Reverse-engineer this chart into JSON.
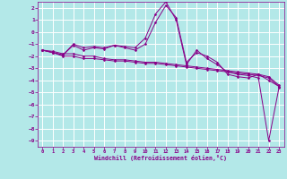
{
  "xlabel": "Windchill (Refroidissement éolien,°C)",
  "bg_color": "#b3e8e8",
  "grid_color": "#c0e8e8",
  "line_color": "#880088",
  "xlim": [
    -0.5,
    23.5
  ],
  "ylim": [
    -9.5,
    2.5
  ],
  "x_ticks": [
    0,
    1,
    2,
    3,
    4,
    5,
    6,
    7,
    8,
    9,
    10,
    11,
    12,
    13,
    14,
    15,
    16,
    17,
    18,
    19,
    20,
    21,
    22,
    23
  ],
  "y_ticks": [
    2,
    1,
    0,
    -1,
    -2,
    -3,
    -4,
    -5,
    -6,
    -7,
    -8,
    -9
  ],
  "series": [
    [
      -1.5,
      -1.7,
      -1.9,
      -1.1,
      -1.5,
      -1.3,
      -1.4,
      -1.1,
      -1.3,
      -1.5,
      -1.0,
      0.8,
      2.2,
      1.2,
      -2.5,
      -1.7,
      -2.0,
      -2.5,
      -3.5,
      -3.7,
      -3.8,
      -3.5,
      -4.0,
      -4.5
    ],
    [
      -1.5,
      -1.7,
      -2.0,
      -2.0,
      -2.2,
      -2.2,
      -2.3,
      -2.4,
      -2.4,
      -2.5,
      -2.6,
      -2.6,
      -2.7,
      -2.8,
      -2.9,
      -3.0,
      -3.1,
      -3.2,
      -3.3,
      -3.4,
      -3.5,
      -3.6,
      -3.8,
      -4.5
    ],
    [
      -1.5,
      -1.6,
      -1.8,
      -1.8,
      -2.0,
      -2.0,
      -2.2,
      -2.3,
      -2.3,
      -2.4,
      -2.5,
      -2.5,
      -2.6,
      -2.7,
      -2.8,
      -2.9,
      -3.0,
      -3.1,
      -3.2,
      -3.3,
      -3.4,
      -3.5,
      -3.7,
      -4.4
    ],
    [
      -1.5,
      -1.7,
      -1.9,
      -1.0,
      -1.3,
      -1.2,
      -1.3,
      -1.1,
      -1.2,
      -1.3,
      -0.5,
      1.5,
      2.5,
      1.0,
      -2.7,
      -1.5,
      -2.2,
      -2.7,
      -3.3,
      -3.5,
      -3.6,
      -3.8,
      -9.0,
      -4.6
    ]
  ]
}
